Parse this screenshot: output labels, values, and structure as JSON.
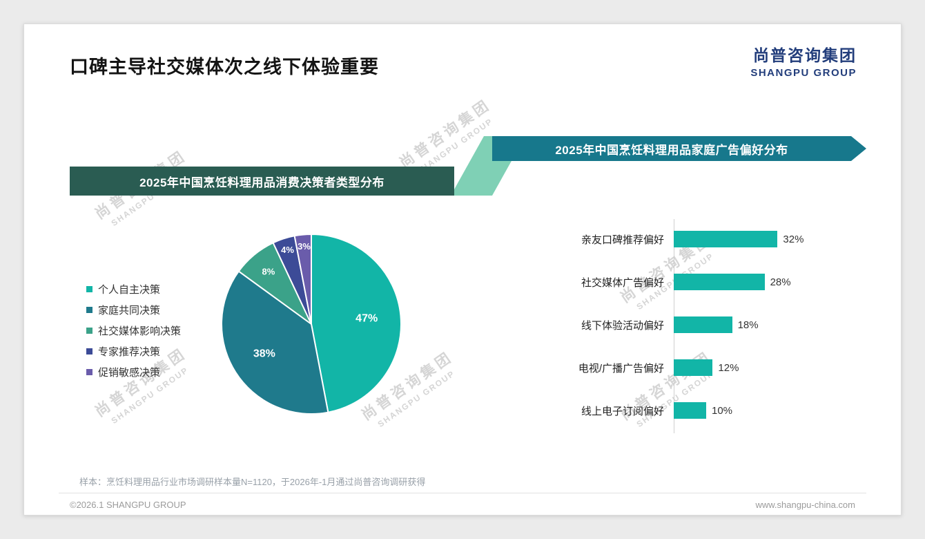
{
  "page": {
    "title": "口碑主导社交媒体次之线下体验重要",
    "logo": {
      "cn": "尚普咨询集团",
      "en": "SHANGPU GROUP"
    },
    "watermark": {
      "cn": "尚普咨询集团",
      "en": "SHANGPU GROUP"
    },
    "sample_note": "样本：烹饪料理用品行业市场调研样本量N=1120，于2026年-1月通过尚普咨询调研获得",
    "footer": {
      "left": "©2026.1 SHANGPU GROUP",
      "right": "www.shangpu-china.com"
    }
  },
  "colors": {
    "teal_primary": "#12b5a7",
    "teal_dark": "#1f7a8c",
    "green_mid": "#3ba289",
    "navy": "#3c4b97",
    "purple": "#6a5cab",
    "banner_left_bg": "#2a5c52",
    "banner_right_bg": "#17788c",
    "connector": "#7fd0b5",
    "logo_navy": "#223d7b"
  },
  "chart_data": [
    {
      "type": "pie",
      "title": "2025年中国烹饪料理用品消费决策者类型分布",
      "legend_position": "left",
      "unit": "%",
      "series": [
        {
          "label": "个人自主决策",
          "value": 47,
          "color": "#12b5a7"
        },
        {
          "label": "家庭共同决策",
          "value": 38,
          "color": "#1f7a8c"
        },
        {
          "label": "社交媒体影响决策",
          "value": 8,
          "color": "#3ba289"
        },
        {
          "label": "专家推荐决策",
          "value": 4,
          "color": "#3c4b97"
        },
        {
          "label": "促销敏感决策",
          "value": 3,
          "color": "#6a5cab"
        }
      ]
    },
    {
      "type": "bar",
      "orientation": "horizontal",
      "title": "2025年中国烹饪料理用品家庭广告偏好分布",
      "categories": [
        "亲友口碑推荐偏好",
        "社交媒体广告偏好",
        "线下体验活动偏好",
        "电视/广播广告偏好",
        "线上电子订阅偏好"
      ],
      "values": [
        32,
        28,
        18,
        12,
        10
      ],
      "unit": "%",
      "bar_color": "#12b5a7",
      "xlim": [
        0,
        35
      ],
      "grid": false,
      "value_labels": "outside-right"
    }
  ]
}
